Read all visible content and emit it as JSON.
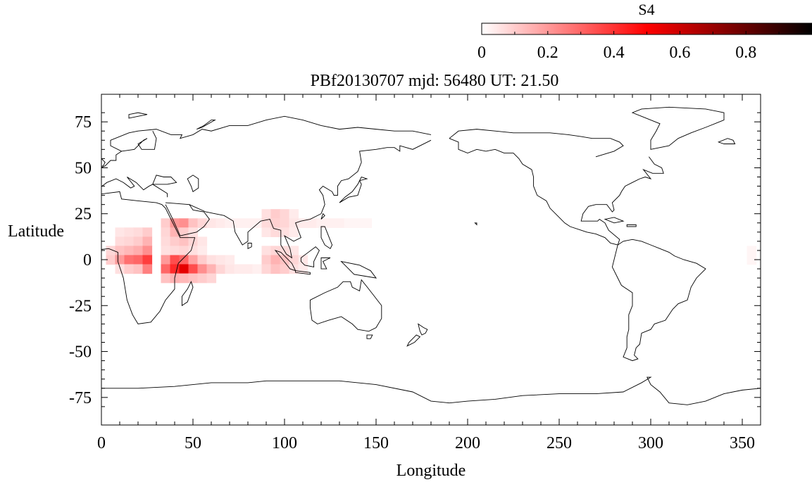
{
  "chart_data": {
    "type": "heatmap",
    "title": "PBf20130707  mjd: 56480  UT:  21.50",
    "xlabel": "Longitude",
    "ylabel": "Latitude",
    "xlim": [
      0,
      360
    ],
    "ylim": [
      -90,
      90
    ],
    "xticks": [
      0,
      50,
      100,
      150,
      200,
      250,
      300,
      350
    ],
    "yticks": [
      75,
      50,
      25,
      0,
      -25,
      -50,
      -75
    ],
    "grid": false,
    "colorbar": {
      "label": "S4",
      "range": [
        0,
        1
      ],
      "ticks": [
        0,
        0.2,
        0.4,
        0.6,
        0.8
      ],
      "tick_labels": [
        "0",
        "0.2",
        "0.4",
        "0.6",
        "0.8"
      ],
      "colors": [
        "#ffffff",
        "#ff0000",
        "#000000"
      ]
    },
    "cell_size_deg": [
      5,
      5
    ],
    "cells": [
      [
        10,
        15,
        0.05
      ],
      [
        15,
        15,
        0.06
      ],
      [
        20,
        15,
        0.07
      ],
      [
        25,
        15,
        0.1
      ],
      [
        10,
        10,
        0.07
      ],
      [
        15,
        10,
        0.08
      ],
      [
        20,
        10,
        0.1
      ],
      [
        25,
        10,
        0.15
      ],
      [
        5,
        5,
        0.08
      ],
      [
        10,
        5,
        0.12
      ],
      [
        15,
        5,
        0.14
      ],
      [
        20,
        5,
        0.16
      ],
      [
        25,
        5,
        0.22
      ],
      [
        5,
        0,
        0.1
      ],
      [
        10,
        0,
        0.2
      ],
      [
        15,
        0,
        0.28
      ],
      [
        20,
        0,
        0.3
      ],
      [
        25,
        0,
        0.38
      ],
      [
        10,
        -5,
        0.06
      ],
      [
        15,
        -5,
        0.1
      ],
      [
        20,
        -5,
        0.12
      ],
      [
        25,
        -5,
        0.25
      ],
      [
        35,
        20,
        0.1
      ],
      [
        40,
        20,
        0.2
      ],
      [
        45,
        20,
        0.22
      ],
      [
        50,
        20,
        0.12
      ],
      [
        55,
        20,
        0.08
      ],
      [
        60,
        20,
        0.05
      ],
      [
        35,
        15,
        0.08
      ],
      [
        40,
        15,
        0.15
      ],
      [
        45,
        15,
        0.1
      ],
      [
        50,
        15,
        0.06
      ],
      [
        35,
        10,
        0.07
      ],
      [
        40,
        10,
        0.1
      ],
      [
        45,
        10,
        0.12
      ],
      [
        50,
        10,
        0.08
      ],
      [
        55,
        10,
        0.05
      ],
      [
        35,
        5,
        0.06
      ],
      [
        40,
        5,
        0.07
      ],
      [
        45,
        5,
        0.08
      ],
      [
        50,
        5,
        0.06
      ],
      [
        55,
        5,
        0.04
      ],
      [
        35,
        0,
        0.2
      ],
      [
        40,
        0,
        0.35
      ],
      [
        45,
        0,
        0.3
      ],
      [
        50,
        0,
        0.18
      ],
      [
        55,
        0,
        0.1
      ],
      [
        60,
        0,
        0.06
      ],
      [
        35,
        -5,
        0.3
      ],
      [
        40,
        -5,
        0.42
      ],
      [
        45,
        -5,
        0.55
      ],
      [
        50,
        -5,
        0.35
      ],
      [
        55,
        -5,
        0.22
      ],
      [
        60,
        -5,
        0.15
      ],
      [
        65,
        -5,
        0.08
      ],
      [
        70,
        -5,
        0.05
      ],
      [
        35,
        -10,
        0.12
      ],
      [
        40,
        -10,
        0.15
      ],
      [
        45,
        -10,
        0.14
      ],
      [
        50,
        -10,
        0.12
      ],
      [
        55,
        -10,
        0.1
      ],
      [
        60,
        -10,
        0.08
      ],
      [
        65,
        0,
        0.05
      ],
      [
        70,
        0,
        0.04
      ],
      [
        75,
        -5,
        0.04
      ],
      [
        80,
        -5,
        0.04
      ],
      [
        85,
        -5,
        0.03
      ],
      [
        65,
        20,
        0.04
      ],
      [
        70,
        20,
        0.03
      ],
      [
        75,
        20,
        0.03
      ],
      [
        80,
        20,
        0.03
      ],
      [
        85,
        20,
        0.03
      ],
      [
        90,
        25,
        0.06
      ],
      [
        95,
        25,
        0.1
      ],
      [
        100,
        25,
        0.08
      ],
      [
        105,
        25,
        0.04
      ],
      [
        90,
        20,
        0.07
      ],
      [
        95,
        20,
        0.09
      ],
      [
        100,
        20,
        0.08
      ],
      [
        105,
        20,
        0.05
      ],
      [
        110,
        20,
        0.04
      ],
      [
        115,
        20,
        0.04
      ],
      [
        120,
        20,
        0.03
      ],
      [
        125,
        20,
        0.03
      ],
      [
        130,
        20,
        0.03
      ],
      [
        135,
        20,
        0.02
      ],
      [
        140,
        20,
        0.02
      ],
      [
        145,
        20,
        0.02
      ],
      [
        90,
        15,
        0.05
      ],
      [
        95,
        15,
        0.07
      ],
      [
        100,
        15,
        0.06
      ],
      [
        105,
        15,
        0.04
      ],
      [
        90,
        5,
        0.06
      ],
      [
        95,
        5,
        0.08
      ],
      [
        100,
        5,
        0.07
      ],
      [
        105,
        5,
        0.05
      ],
      [
        90,
        0,
        0.1
      ],
      [
        95,
        0,
        0.15
      ],
      [
        100,
        0,
        0.12
      ],
      [
        105,
        0,
        0.08
      ],
      [
        110,
        0,
        0.05
      ],
      [
        90,
        -5,
        0.08
      ],
      [
        95,
        -5,
        0.12
      ],
      [
        100,
        -5,
        0.1
      ],
      [
        105,
        -5,
        0.06
      ],
      [
        110,
        -5,
        0.04
      ],
      [
        355,
        0,
        0.02
      ],
      [
        355,
        5,
        0.02
      ]
    ]
  }
}
